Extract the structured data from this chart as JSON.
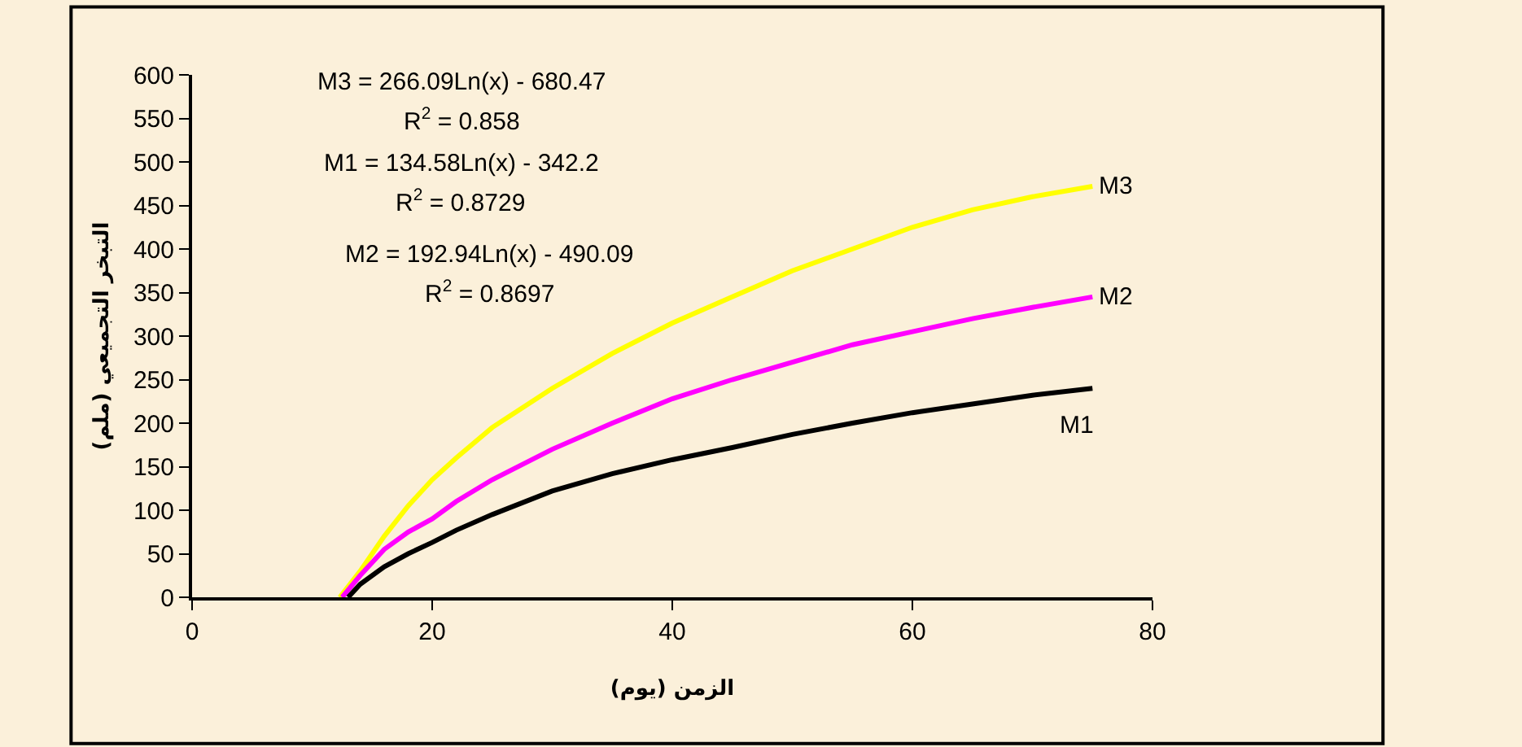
{
  "chart_data": {
    "type": "line",
    "xlabel": "الزمن (يوم)",
    "ylabel": "التبخر التجميعي (ملم)",
    "xlim": [
      0,
      80
    ],
    "xticks": [
      0,
      20,
      40,
      60,
      80
    ],
    "ylim": [
      0,
      600
    ],
    "yticks": [
      0,
      50,
      100,
      150,
      200,
      250,
      300,
      350,
      400,
      450,
      500,
      550,
      600
    ],
    "grid": false,
    "legend": false,
    "marker": "none",
    "line_style": "solid",
    "series": [
      {
        "name": "M3",
        "color": "#ffff00",
        "x": [
          12.3,
          14,
          16,
          18,
          20,
          22,
          25,
          30,
          35,
          40,
          45,
          50,
          55,
          60,
          65,
          70,
          75
        ],
        "values": [
          0,
          30,
          70,
          105,
          135,
          160,
          195,
          240,
          280,
          315,
          345,
          375,
          400,
          425,
          445,
          460,
          472
        ]
      },
      {
        "name": "M2",
        "color": "#ff00ff",
        "x": [
          12.5,
          14,
          16,
          18,
          20,
          22,
          25,
          30,
          35,
          40,
          45,
          50,
          55,
          60,
          65,
          70,
          75
        ],
        "values": [
          0,
          25,
          55,
          75,
          90,
          110,
          135,
          170,
          200,
          228,
          250,
          270,
          290,
          305,
          320,
          333,
          345
        ]
      },
      {
        "name": "M1",
        "color": "#000000",
        "x": [
          13,
          14,
          16,
          18,
          20,
          22,
          25,
          30,
          35,
          40,
          45,
          50,
          55,
          60,
          65,
          70,
          75
        ],
        "values": [
          0,
          15,
          35,
          50,
          63,
          77,
          95,
          122,
          142,
          158,
          172,
          187,
          200,
          212,
          222,
          232,
          240
        ]
      }
    ],
    "annotations": [
      "M3 = 266.09Ln(x) - 680.47",
      "R$^{2}$ = 0.858",
      "M1 = 134.58Ln(x) - 342.2",
      "R$^{2}$ = 0.8729",
      "M2 = 192.94Ln(x) - 490.09",
      "R$^{2}$ = 0.8697"
    ]
  }
}
